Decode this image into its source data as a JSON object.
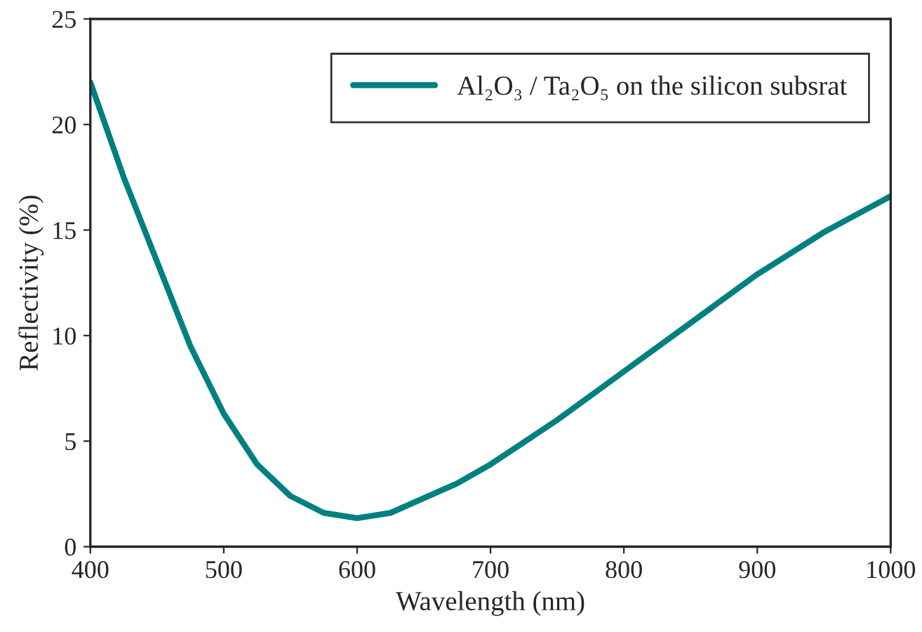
{
  "chart_data": {
    "type": "line",
    "xlabel": "Wavelength (nm)",
    "ylabel": "Reflectivity (%)",
    "x": [
      400,
      425,
      450,
      475,
      500,
      525,
      550,
      575,
      600,
      625,
      650,
      675,
      700,
      750,
      800,
      850,
      900,
      950,
      1000
    ],
    "series": [
      {
        "name": "Al₂O₃ / Ta₂O₅ on the silicon subsrat",
        "color": "#008080",
        "values": [
          22.0,
          17.5,
          13.5,
          9.5,
          6.3,
          3.9,
          2.4,
          1.6,
          1.35,
          1.6,
          2.3,
          3.0,
          3.9,
          6.0,
          8.3,
          10.6,
          12.9,
          14.9,
          16.6
        ]
      }
    ],
    "xlim": [
      400,
      1000
    ],
    "ylim": [
      0,
      25
    ],
    "xticks": [
      400,
      500,
      600,
      700,
      800,
      900,
      1000
    ],
    "yticks": [
      0,
      5,
      10,
      15,
      20,
      25
    ],
    "legend": "top right",
    "grid": false,
    "marker": "none",
    "line_style": "solid"
  }
}
